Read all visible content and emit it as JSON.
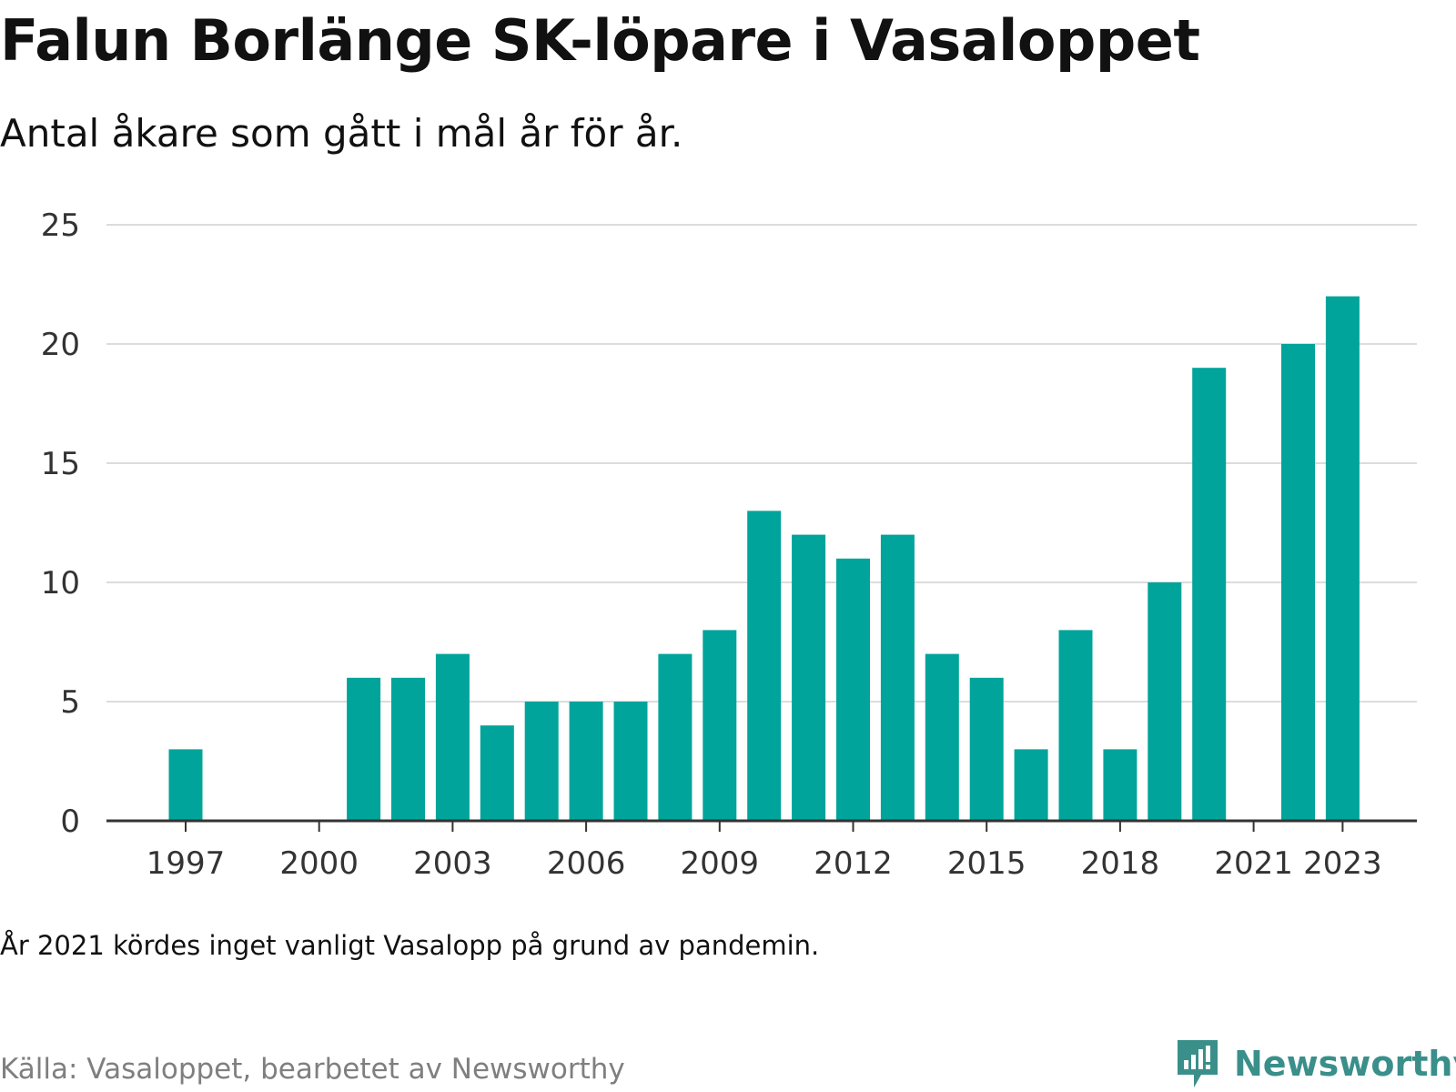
{
  "chart_data": {
    "type": "bar",
    "title": "Falun Borlänge SK-löpare i Vasaloppet",
    "subtitle": "Antal åkare som gått i mål år för år.",
    "xlabel": "",
    "ylabel": "",
    "categories": [
      "1997",
      "1998",
      "1999",
      "2000",
      "2001",
      "2002",
      "2003",
      "2004",
      "2005",
      "2006",
      "2007",
      "2008",
      "2009",
      "2010",
      "2011",
      "2012",
      "2013",
      "2014",
      "2015",
      "2016",
      "2017",
      "2018",
      "2019",
      "2020",
      "2021",
      "2022",
      "2023"
    ],
    "values": [
      3,
      0,
      0,
      0,
      6,
      6,
      7,
      4,
      5,
      5,
      5,
      7,
      8,
      13,
      12,
      11,
      12,
      7,
      6,
      3,
      8,
      3,
      10,
      19,
      0,
      20,
      22
    ],
    "x_tick_labels": [
      "1997",
      "2000",
      "2003",
      "2006",
      "2009",
      "2012",
      "2015",
      "2018",
      "2021",
      "2023"
    ],
    "y_ticks": [
      0,
      5,
      10,
      15,
      20,
      25
    ],
    "ylim": [
      0,
      25
    ],
    "grid": true,
    "legend": "none",
    "bar_color": "#00a49a",
    "grid_color": "#dcdcdc",
    "axis_color": "#333333"
  },
  "note": "År 2021 kördes inget vanligt Vasalopp på grund av pandemin.",
  "source": "Källa: Vasaloppet, bearbetet av Newsworthy",
  "logo": {
    "text": "Newsworthy",
    "icon": "newsworthy-logo-icon",
    "color": "#3a8f8a"
  }
}
